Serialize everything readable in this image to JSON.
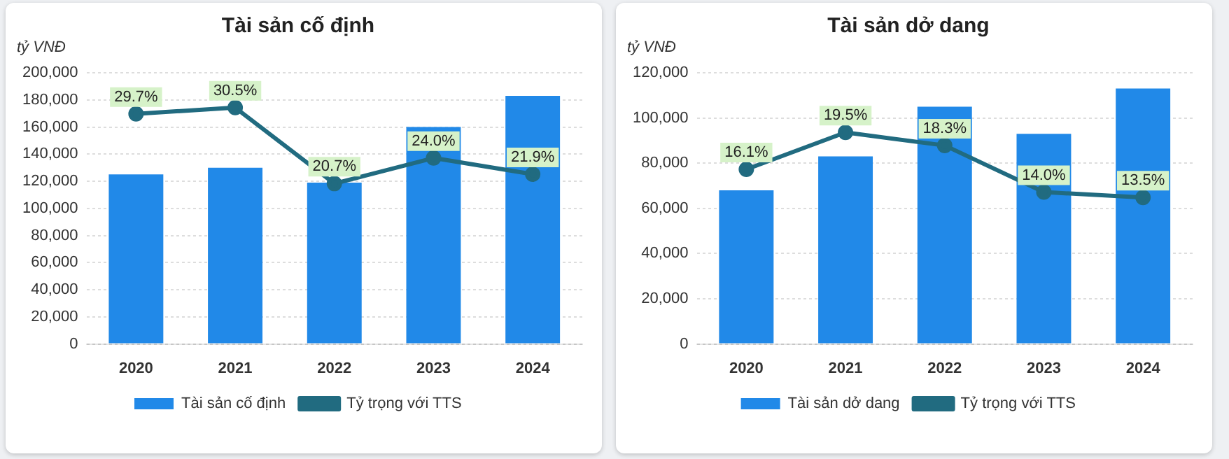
{
  "chart_data": [
    {
      "type": "bar",
      "title": "Tài sản cố định",
      "ylabel": "tỷ VNĐ",
      "categories": [
        "2020",
        "2021",
        "2022",
        "2023",
        "2024"
      ],
      "ylim": [
        0,
        200000
      ],
      "yticks": [
        {
          "value": 0,
          "label": "0"
        },
        {
          "value": 20000,
          "label": "20,000"
        },
        {
          "value": 40000,
          "label": "40,000"
        },
        {
          "value": 60000,
          "label": "60,000"
        },
        {
          "value": 80000,
          "label": "80,000"
        },
        {
          "value": 100000,
          "label": "100,000"
        },
        {
          "value": 120000,
          "label": "120,000"
        },
        {
          "value": 140000,
          "label": "140,000"
        },
        {
          "value": 160000,
          "label": "160,000"
        },
        {
          "value": 180000,
          "label": "180,000"
        },
        {
          "value": 200000,
          "label": "200,000"
        }
      ],
      "y2lim": [
        0,
        35
      ],
      "grid": "y",
      "legend": "bottom",
      "tick_labels": "xy",
      "series": [
        {
          "name": "Tài sản cố định",
          "color": "#2189e8",
          "values": [
            125000,
            130000,
            119000,
            160000,
            183000
          ]
        },
        {
          "name": "Tỷ trọng với TTS",
          "type": "line",
          "axis": "y2",
          "color": "#216b80",
          "marker": "circle",
          "values": [
            29.7,
            30.5,
            20.7,
            24.0,
            21.9
          ],
          "value_labels": [
            "29.7%",
            "30.5%",
            "20.7%",
            "24.0%",
            "21.9%"
          ]
        }
      ]
    },
    {
      "type": "bar",
      "title": "Tài sản dở dang",
      "ylabel": "tỷ VNĐ",
      "categories": [
        "2020",
        "2021",
        "2022",
        "2023",
        "2024"
      ],
      "ylim": [
        0,
        120000
      ],
      "yticks": [
        {
          "value": 0,
          "label": "0"
        },
        {
          "value": 20000,
          "label": "20,000"
        },
        {
          "value": 40000,
          "label": "40,000"
        },
        {
          "value": 60000,
          "label": "60,000"
        },
        {
          "value": 80000,
          "label": "80,000"
        },
        {
          "value": 100000,
          "label": "100,000"
        },
        {
          "value": 120000,
          "label": "120,000"
        }
      ],
      "y2lim": [
        0,
        25
      ],
      "grid": "y",
      "legend": "bottom",
      "tick_labels": "xy",
      "series": [
        {
          "name": "Tài sản dở dang",
          "color": "#2189e8",
          "values": [
            68000,
            83000,
            105000,
            93000,
            113000
          ]
        },
        {
          "name": "Tỷ trọng với TTS",
          "type": "line",
          "axis": "y2",
          "color": "#216b80",
          "marker": "circle",
          "values": [
            16.1,
            19.5,
            18.3,
            14.0,
            13.5
          ],
          "value_labels": [
            "16.1%",
            "19.5%",
            "18.3%",
            "14.0%",
            "13.5%"
          ]
        }
      ]
    }
  ]
}
